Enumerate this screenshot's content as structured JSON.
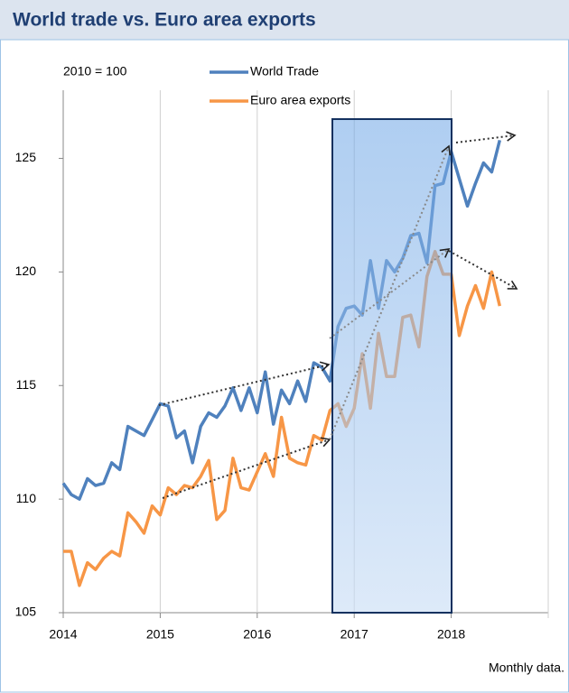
{
  "chart_data": {
    "type": "line",
    "title": "World trade vs. Euro area exports",
    "unit_label": "2010 = 100",
    "note": "Monthly data.",
    "x": [
      2014,
      2014.083,
      2014.167,
      2014.25,
      2014.333,
      2014.417,
      2014.5,
      2014.583,
      2014.667,
      2014.75,
      2014.833,
      2014.917,
      2015,
      2015.083,
      2015.167,
      2015.25,
      2015.333,
      2015.417,
      2015.5,
      2015.583,
      2015.667,
      2015.75,
      2015.833,
      2015.917,
      2016,
      2016.083,
      2016.167,
      2016.25,
      2016.333,
      2016.417,
      2016.5,
      2016.583,
      2016.667,
      2016.75,
      2016.833,
      2016.917,
      2017,
      2017.083,
      2017.167,
      2017.25,
      2017.333,
      2017.417,
      2017.5,
      2017.583,
      2017.667,
      2017.75,
      2017.833,
      2017.917,
      2018,
      2018.083,
      2018.167,
      2018.25,
      2018.333,
      2018.417,
      2018.5
    ],
    "series": [
      {
        "name": "World Trade",
        "color": "#4f81bd",
        "values": [
          110.7,
          110.2,
          110.0,
          110.9,
          110.6,
          110.7,
          111.6,
          111.3,
          113.2,
          113.0,
          112.8,
          113.5,
          114.2,
          114.1,
          112.7,
          113.0,
          111.6,
          113.2,
          113.8,
          113.6,
          114.1,
          114.9,
          113.9,
          114.9,
          113.8,
          115.6,
          113.3,
          114.8,
          114.2,
          115.2,
          114.3,
          116.0,
          115.8,
          115.2,
          117.6,
          118.4,
          118.5,
          118.1,
          120.5,
          118.4,
          120.5,
          120.0,
          120.6,
          121.6,
          121.7,
          120.4,
          123.8,
          123.9,
          125.3,
          124.1,
          122.9,
          123.9,
          124.8,
          124.4,
          125.8
        ]
      },
      {
        "name": "Euro area exports",
        "color": "#f79646",
        "values": [
          107.7,
          107.7,
          106.2,
          107.2,
          106.9,
          107.4,
          107.7,
          107.5,
          109.4,
          109.0,
          108.5,
          109.7,
          109.3,
          110.5,
          110.2,
          110.6,
          110.5,
          111.0,
          111.7,
          109.1,
          109.5,
          111.8,
          110.5,
          110.4,
          111.2,
          112.0,
          111.0,
          113.6,
          111.8,
          111.6,
          111.5,
          112.8,
          112.6,
          113.9,
          114.2,
          113.2,
          114.0,
          116.4,
          114.0,
          117.3,
          115.4,
          115.4,
          118.0,
          118.1,
          116.7,
          119.8,
          120.9,
          119.9,
          119.9,
          117.2,
          118.5,
          119.4,
          118.4,
          120.0,
          118.5
        ]
      }
    ],
    "xlim": [
      2014,
      2019
    ],
    "xticks": [
      2014,
      2015,
      2016,
      2017,
      2018
    ],
    "ylim": [
      105,
      128
    ],
    "yticks": [
      105,
      110,
      115,
      120,
      125
    ],
    "grid": true
  }
}
